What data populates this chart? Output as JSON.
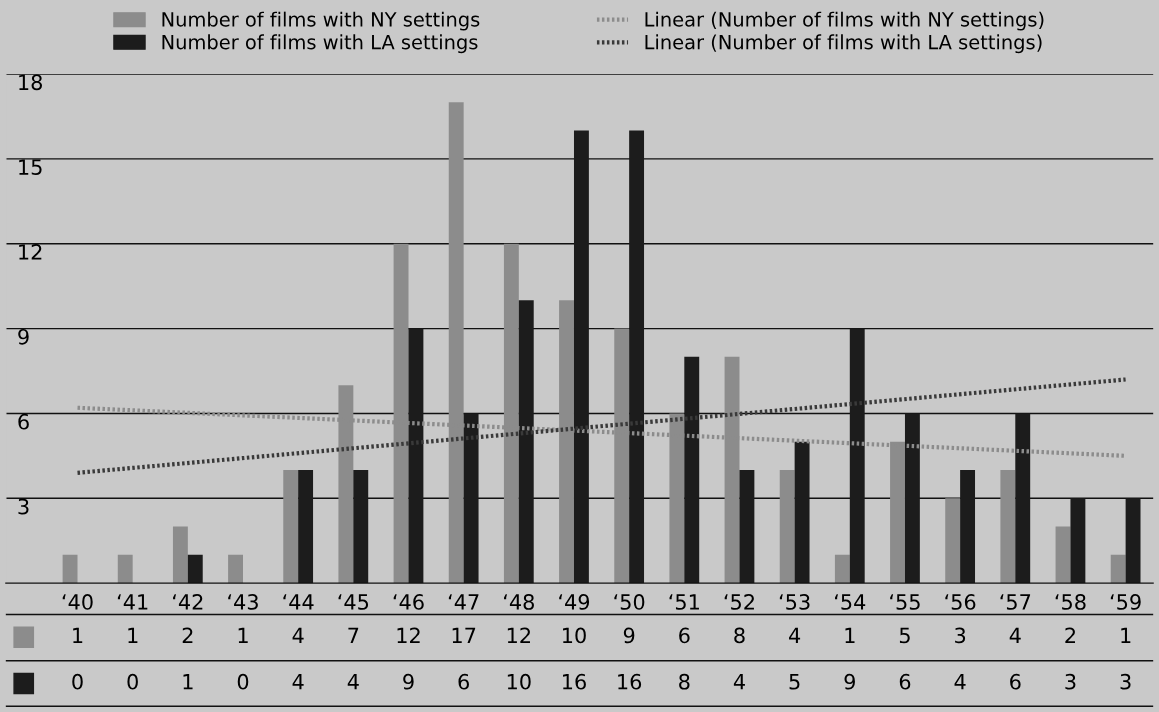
{
  "chart_data": {
    "type": "bar",
    "categories": [
      "‘40",
      "‘41",
      "‘42",
      "‘43",
      "‘44",
      "‘45",
      "‘46",
      "‘47",
      "‘48",
      "‘49",
      "‘50",
      "‘51",
      "‘52",
      "‘53",
      "‘54",
      "‘55",
      "‘56",
      "‘57",
      "‘58",
      "‘59"
    ],
    "series": [
      {
        "name": "Number of films with NY settings",
        "color": "#8c8c8c",
        "values": [
          1,
          1,
          2,
          1,
          4,
          7,
          12,
          17,
          12,
          10,
          9,
          6,
          8,
          4,
          1,
          5,
          3,
          4,
          2,
          1
        ],
        "value_labels": [
          "1",
          "1",
          "2",
          "1",
          "4",
          "7",
          "12",
          "17",
          "12",
          "10",
          "9",
          "6",
          "8",
          "4",
          "1",
          "5",
          "3",
          "4",
          "2",
          "1"
        ]
      },
      {
        "name": "Number of films with LA settings",
        "color": "#1c1c1c",
        "values": [
          0,
          0,
          1,
          0,
          4,
          4,
          9,
          6,
          10,
          16,
          16,
          8,
          4,
          5,
          9,
          6,
          4,
          6,
          3,
          3
        ],
        "value_labels": [
          "0",
          "0",
          "1",
          "0",
          "4",
          "4",
          "9",
          "6",
          "10",
          "16",
          "16",
          "8",
          "4",
          "5",
          "9",
          "6",
          "4",
          "6",
          "3",
          "3"
        ]
      },
      {
        "name": "Linear (Number of films with NY settings)",
        "type": "line",
        "line_style": "dotted",
        "color": "#8c8c8c",
        "x": [
          "‘40",
          "‘59"
        ],
        "values": [
          6.2,
          4.5
        ]
      },
      {
        "name": "Linear (Number of films with LA settings)",
        "type": "line",
        "line_style": "dotted",
        "color": "#3a3a3a",
        "x": [
          "‘40",
          "‘59"
        ],
        "values": [
          3.9,
          7.2
        ]
      }
    ],
    "ylim": [
      0,
      18
    ],
    "yticks": [
      3,
      6,
      9,
      12,
      15,
      18
    ],
    "grid": "y",
    "legend": "top"
  }
}
